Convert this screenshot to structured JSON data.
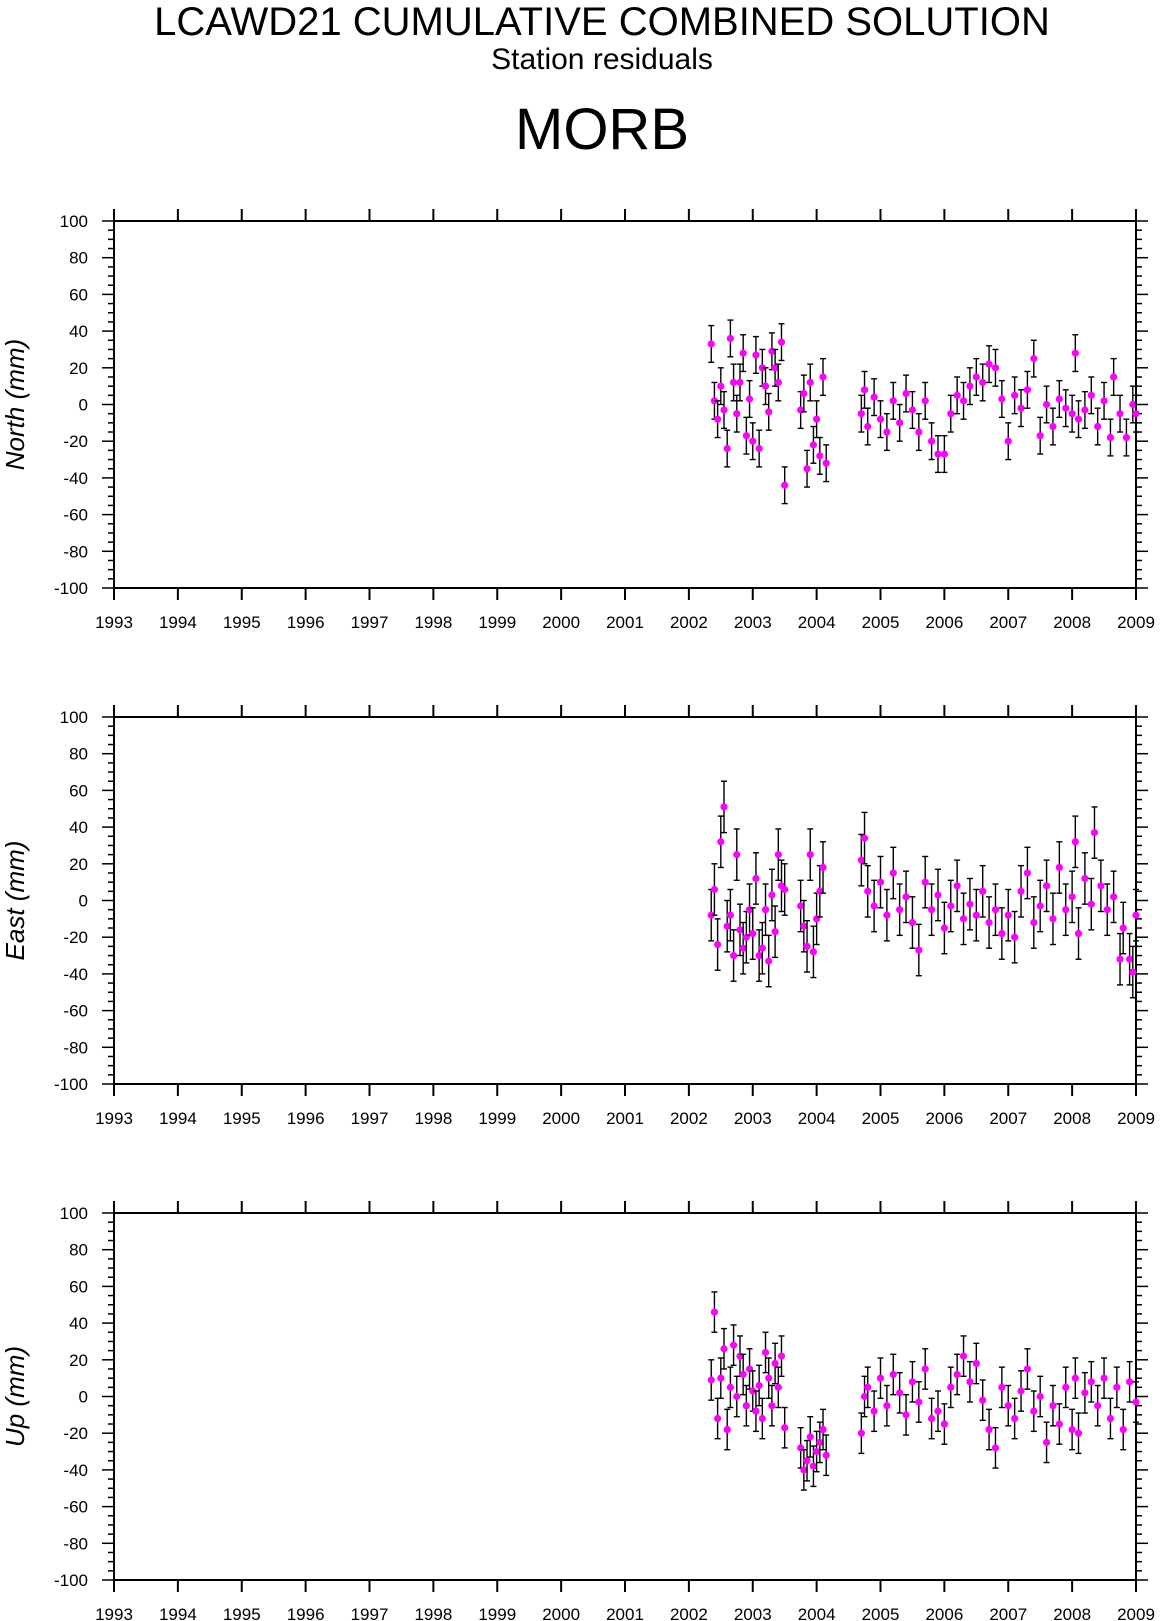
{
  "header": {
    "title": "LCAWD21 CUMULATIVE COMBINED SOLUTION",
    "subtitle": "Station residuals",
    "station": "MORB"
  },
  "colors": {
    "point": "#ff00ff",
    "errorbar": "#000000",
    "axis": "#000000"
  },
  "chart_data": [
    {
      "type": "scatter",
      "ylabel": "North (mm)",
      "xlim": [
        1993,
        2009
      ],
      "ylim": [
        -100,
        100
      ],
      "x_ticks": [
        "1993",
        "1994",
        "1995",
        "1996",
        "1997",
        "1998",
        "1999",
        "2000",
        "2001",
        "2002",
        "2003",
        "2004",
        "2005",
        "2006",
        "2007",
        "2008",
        "2009"
      ],
      "y_ticks": [
        "100",
        "80",
        "60",
        "40",
        "20",
        "0",
        "-20",
        "-40",
        "-60",
        "-80",
        "-100"
      ],
      "error_bar_mm": 10,
      "series": [
        {
          "points": [
            [
              2002.35,
              33
            ],
            [
              2002.4,
              2
            ],
            [
              2002.45,
              -8
            ],
            [
              2002.5,
              10
            ],
            [
              2002.55,
              -3
            ],
            [
              2002.6,
              -24
            ],
            [
              2002.65,
              36
            ],
            [
              2002.7,
              12
            ],
            [
              2002.75,
              -5
            ],
            [
              2002.8,
              12
            ],
            [
              2002.85,
              28
            ],
            [
              2002.9,
              -17
            ],
            [
              2002.95,
              3
            ],
            [
              2003.0,
              -20
            ],
            [
              2003.05,
              27
            ],
            [
              2003.1,
              -24
            ],
            [
              2003.15,
              20
            ],
            [
              2003.2,
              10
            ],
            [
              2003.25,
              -4
            ],
            [
              2003.3,
              29
            ],
            [
              2003.35,
              20
            ],
            [
              2003.4,
              12
            ],
            [
              2003.45,
              34
            ],
            [
              2003.5,
              -44
            ],
            [
              2003.75,
              -3
            ],
            [
              2003.8,
              6
            ],
            [
              2003.85,
              -35
            ],
            [
              2003.9,
              12
            ],
            [
              2003.95,
              -22
            ],
            [
              2004.0,
              -8
            ],
            [
              2004.05,
              -28
            ],
            [
              2004.1,
              15
            ],
            [
              2004.15,
              -32
            ],
            [
              2004.7,
              -5
            ],
            [
              2004.75,
              8
            ],
            [
              2004.8,
              -12
            ],
            [
              2004.9,
              4
            ],
            [
              2005.0,
              -8
            ],
            [
              2005.1,
              -15
            ],
            [
              2005.2,
              2
            ],
            [
              2005.3,
              -10
            ],
            [
              2005.4,
              6
            ],
            [
              2005.5,
              -3
            ],
            [
              2005.6,
              -15
            ],
            [
              2005.7,
              2
            ],
            [
              2005.8,
              -20
            ],
            [
              2005.9,
              -27
            ],
            [
              2006.0,
              -27
            ],
            [
              2006.1,
              -5
            ],
            [
              2006.2,
              5
            ],
            [
              2006.3,
              2
            ],
            [
              2006.4,
              10
            ],
            [
              2006.5,
              15
            ],
            [
              2006.6,
              12
            ],
            [
              2006.7,
              22
            ],
            [
              2006.8,
              20
            ],
            [
              2006.9,
              3
            ],
            [
              2007.0,
              -20
            ],
            [
              2007.1,
              5
            ],
            [
              2007.2,
              -2
            ],
            [
              2007.3,
              8
            ],
            [
              2007.4,
              25
            ],
            [
              2007.5,
              -17
            ],
            [
              2007.6,
              0
            ],
            [
              2007.7,
              -12
            ],
            [
              2007.8,
              3
            ],
            [
              2007.9,
              -2
            ],
            [
              2008.0,
              -5
            ],
            [
              2008.05,
              28
            ],
            [
              2008.1,
              -8
            ],
            [
              2008.2,
              -3
            ],
            [
              2008.3,
              5
            ],
            [
              2008.4,
              -12
            ],
            [
              2008.5,
              2
            ],
            [
              2008.6,
              -18
            ],
            [
              2008.65,
              15
            ],
            [
              2008.75,
              -5
            ],
            [
              2008.85,
              -18
            ],
            [
              2008.95,
              0
            ],
            [
              2009.0,
              -5
            ]
          ]
        }
      ]
    },
    {
      "type": "scatter",
      "ylabel": "East (mm)",
      "xlim": [
        1993,
        2009
      ],
      "ylim": [
        -100,
        100
      ],
      "x_ticks": [
        "1993",
        "1994",
        "1995",
        "1996",
        "1997",
        "1998",
        "1999",
        "2000",
        "2001",
        "2002",
        "2003",
        "2004",
        "2005",
        "2006",
        "2007",
        "2008",
        "2009"
      ],
      "y_ticks": [
        "100",
        "80",
        "60",
        "40",
        "20",
        "0",
        "-20",
        "-40",
        "-60",
        "-80",
        "-100"
      ],
      "error_bar_mm": 14,
      "series": [
        {
          "points": [
            [
              2002.35,
              -8
            ],
            [
              2002.4,
              6
            ],
            [
              2002.45,
              -24
            ],
            [
              2002.5,
              32
            ],
            [
              2002.55,
              51
            ],
            [
              2002.6,
              -14
            ],
            [
              2002.65,
              -8
            ],
            [
              2002.7,
              -30
            ],
            [
              2002.75,
              25
            ],
            [
              2002.8,
              -16
            ],
            [
              2002.85,
              -26
            ],
            [
              2002.9,
              -20
            ],
            [
              2002.95,
              -5
            ],
            [
              2003.0,
              -18
            ],
            [
              2003.05,
              12
            ],
            [
              2003.1,
              -30
            ],
            [
              2003.15,
              -26
            ],
            [
              2003.2,
              -5
            ],
            [
              2003.25,
              -33
            ],
            [
              2003.3,
              3
            ],
            [
              2003.35,
              -17
            ],
            [
              2003.4,
              25
            ],
            [
              2003.45,
              8
            ],
            [
              2003.5,
              6
            ],
            [
              2003.75,
              -3
            ],
            [
              2003.8,
              -14
            ],
            [
              2003.85,
              -25
            ],
            [
              2003.9,
              25
            ],
            [
              2003.95,
              -28
            ],
            [
              2004.0,
              -10
            ],
            [
              2004.05,
              5
            ],
            [
              2004.1,
              18
            ],
            [
              2004.7,
              22
            ],
            [
              2004.75,
              34
            ],
            [
              2004.8,
              5
            ],
            [
              2004.9,
              -3
            ],
            [
              2005.0,
              10
            ],
            [
              2005.1,
              -8
            ],
            [
              2005.2,
              15
            ],
            [
              2005.3,
              -5
            ],
            [
              2005.4,
              2
            ],
            [
              2005.5,
              -12
            ],
            [
              2005.6,
              -27
            ],
            [
              2005.7,
              10
            ],
            [
              2005.8,
              -5
            ],
            [
              2005.9,
              3
            ],
            [
              2006.0,
              -15
            ],
            [
              2006.1,
              -3
            ],
            [
              2006.2,
              8
            ],
            [
              2006.3,
              -10
            ],
            [
              2006.4,
              -2
            ],
            [
              2006.5,
              -8
            ],
            [
              2006.6,
              5
            ],
            [
              2006.7,
              -12
            ],
            [
              2006.8,
              -5
            ],
            [
              2006.9,
              -18
            ],
            [
              2007.0,
              -8
            ],
            [
              2007.1,
              -20
            ],
            [
              2007.2,
              5
            ],
            [
              2007.3,
              15
            ],
            [
              2007.4,
              -12
            ],
            [
              2007.5,
              -3
            ],
            [
              2007.6,
              8
            ],
            [
              2007.7,
              -10
            ],
            [
              2007.8,
              18
            ],
            [
              2007.9,
              -5
            ],
            [
              2008.0,
              2
            ],
            [
              2008.05,
              32
            ],
            [
              2008.1,
              -18
            ],
            [
              2008.2,
              12
            ],
            [
              2008.3,
              -2
            ],
            [
              2008.35,
              37
            ],
            [
              2008.45,
              8
            ],
            [
              2008.55,
              -5
            ],
            [
              2008.65,
              2
            ],
            [
              2008.75,
              -32
            ],
            [
              2008.8,
              -15
            ],
            [
              2008.9,
              -32
            ],
            [
              2008.95,
              -39
            ],
            [
              2009.0,
              -8
            ]
          ]
        }
      ]
    },
    {
      "type": "scatter",
      "ylabel": "Up (mm)",
      "xlim": [
        1993,
        2009
      ],
      "ylim": [
        -100,
        100
      ],
      "x_ticks": [
        "1993",
        "1994",
        "1995",
        "1996",
        "1997",
        "1998",
        "1999",
        "2000",
        "2001",
        "2002",
        "2003",
        "2004",
        "2005",
        "2006",
        "2007",
        "2008",
        "2009"
      ],
      "y_ticks": [
        "100",
        "80",
        "60",
        "40",
        "20",
        "0",
        "-20",
        "-40",
        "-60",
        "-80",
        "-100"
      ],
      "error_bar_mm": 11,
      "series": [
        {
          "points": [
            [
              2002.35,
              9
            ],
            [
              2002.4,
              46
            ],
            [
              2002.45,
              -12
            ],
            [
              2002.5,
              10
            ],
            [
              2002.55,
              26
            ],
            [
              2002.6,
              -18
            ],
            [
              2002.65,
              5
            ],
            [
              2002.7,
              28
            ],
            [
              2002.75,
              0
            ],
            [
              2002.8,
              22
            ],
            [
              2002.85,
              12
            ],
            [
              2002.9,
              -5
            ],
            [
              2002.95,
              15
            ],
            [
              2003.0,
              3
            ],
            [
              2003.05,
              -8
            ],
            [
              2003.1,
              6
            ],
            [
              2003.15,
              -12
            ],
            [
              2003.2,
              24
            ],
            [
              2003.25,
              10
            ],
            [
              2003.3,
              -5
            ],
            [
              2003.35,
              18
            ],
            [
              2003.4,
              5
            ],
            [
              2003.45,
              22
            ],
            [
              2003.5,
              -17
            ],
            [
              2003.75,
              -28
            ],
            [
              2003.8,
              -40
            ],
            [
              2003.85,
              -35
            ],
            [
              2003.9,
              -22
            ],
            [
              2003.95,
              -38
            ],
            [
              2004.0,
              -30
            ],
            [
              2004.05,
              -25
            ],
            [
              2004.1,
              -18
            ],
            [
              2004.15,
              -32
            ],
            [
              2004.7,
              -20
            ],
            [
              2004.75,
              0
            ],
            [
              2004.8,
              5
            ],
            [
              2004.9,
              -8
            ],
            [
              2005.0,
              10
            ],
            [
              2005.1,
              -5
            ],
            [
              2005.2,
              12
            ],
            [
              2005.3,
              2
            ],
            [
              2005.4,
              -10
            ],
            [
              2005.5,
              8
            ],
            [
              2005.6,
              -3
            ],
            [
              2005.7,
              15
            ],
            [
              2005.8,
              -12
            ],
            [
              2005.9,
              -8
            ],
            [
              2006.0,
              -15
            ],
            [
              2006.1,
              5
            ],
            [
              2006.2,
              12
            ],
            [
              2006.3,
              22
            ],
            [
              2006.4,
              8
            ],
            [
              2006.5,
              18
            ],
            [
              2006.6,
              -2
            ],
            [
              2006.7,
              -18
            ],
            [
              2006.8,
              -28
            ],
            [
              2006.9,
              5
            ],
            [
              2007.0,
              -5
            ],
            [
              2007.1,
              -12
            ],
            [
              2007.2,
              3
            ],
            [
              2007.3,
              15
            ],
            [
              2007.4,
              -8
            ],
            [
              2007.5,
              0
            ],
            [
              2007.6,
              -25
            ],
            [
              2007.7,
              -5
            ],
            [
              2007.8,
              -15
            ],
            [
              2007.9,
              5
            ],
            [
              2008.0,
              -18
            ],
            [
              2008.05,
              10
            ],
            [
              2008.1,
              -20
            ],
            [
              2008.2,
              2
            ],
            [
              2008.3,
              8
            ],
            [
              2008.4,
              -5
            ],
            [
              2008.5,
              10
            ],
            [
              2008.6,
              -12
            ],
            [
              2008.7,
              5
            ],
            [
              2008.8,
              -18
            ],
            [
              2008.9,
              8
            ],
            [
              2009.0,
              -3
            ]
          ]
        }
      ]
    }
  ]
}
